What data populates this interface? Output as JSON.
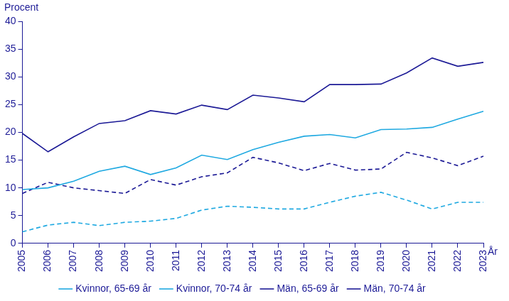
{
  "chart_data": {
    "type": "line",
    "y_label": "Procent",
    "x_label": "År",
    "categories": [
      "2005",
      "2006",
      "2007",
      "2008",
      "2009",
      "2010",
      "2011",
      "2012",
      "2013",
      "2014",
      "2015",
      "2016",
      "2017",
      "2018",
      "2019",
      "2020",
      "2021",
      "2022",
      "2023"
    ],
    "series": [
      {
        "name": "Kvinnor, 65-69 år",
        "color": "#1fa9e1",
        "line_style": "solid",
        "values": [
          9.7,
          10.0,
          11.2,
          13.0,
          13.9,
          12.4,
          13.6,
          15.9,
          15.1,
          16.9,
          18.2,
          19.3,
          19.6,
          19.0,
          20.5,
          20.6,
          20.9,
          22.4,
          23.8
        ]
      },
      {
        "name": "Kvinnor, 70-74 år",
        "color": "#1fa9e1",
        "line_style": "dashed",
        "values": [
          2.1,
          3.3,
          3.8,
          3.2,
          3.8,
          4.0,
          4.5,
          6.0,
          6.7,
          6.5,
          6.2,
          6.2,
          7.4,
          8.5,
          9.2,
          7.8,
          6.2,
          7.4,
          7.4
        ]
      },
      {
        "name": "Män, 65-69 år",
        "color": "#1c1a96",
        "line_style": "solid",
        "values": [
          19.8,
          16.5,
          19.2,
          21.6,
          22.1,
          23.9,
          23.3,
          24.9,
          24.1,
          26.7,
          26.2,
          25.5,
          28.6,
          28.6,
          28.7,
          30.7,
          33.4,
          31.9,
          32.6
        ]
      },
      {
        "name": "Män, 70-74 år",
        "color": "#1c1a96",
        "line_style": "dashed",
        "values": [
          9.0,
          11.0,
          10.0,
          9.5,
          9.0,
          11.5,
          10.5,
          12.0,
          12.7,
          15.5,
          14.5,
          13.1,
          14.4,
          13.2,
          13.4,
          16.4,
          15.4,
          14.0,
          15.7
        ]
      }
    ],
    "ylim": [
      0,
      40
    ],
    "yticks": [
      0,
      5,
      10,
      15,
      20,
      25,
      30,
      35,
      40
    ],
    "grid": false,
    "legend": "bottom"
  }
}
